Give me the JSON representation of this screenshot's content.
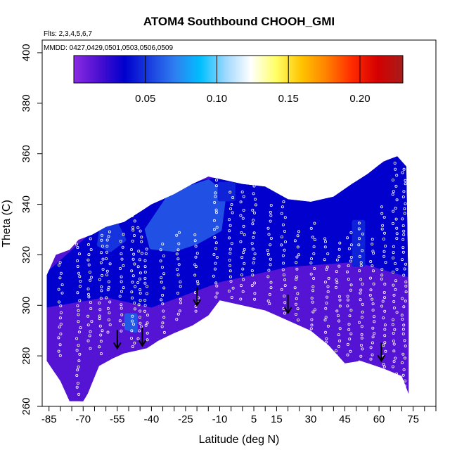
{
  "chart_data": {
    "type": "heatmap",
    "title": "ATOM4 Southbound CHOOH_GMI",
    "xlabel": "Latitude (deg N)",
    "ylabel": "Theta (C)",
    "notes": {
      "flights": "Flts: 2,3,4,5,6,7",
      "dates": "MMDD: 0427,0429,0501,0503,0506,0509"
    },
    "xlim": [
      -88,
      85
    ],
    "ylim": [
      260,
      405
    ],
    "x_ticks": [
      -85,
      -70,
      -55,
      -40,
      -25,
      -10,
      5,
      15,
      30,
      45,
      60,
      75
    ],
    "x_minor_ticks": [
      -80,
      -75,
      -65,
      -60,
      -50,
      -45,
      -35,
      -30,
      -20,
      -15,
      -5,
      0,
      10,
      20,
      25,
      35,
      40,
      50,
      55,
      65,
      70,
      80,
      85
    ],
    "y_ticks": [
      260,
      280,
      300,
      320,
      340,
      360,
      380,
      400
    ],
    "colorbar": {
      "min": 0.0,
      "max": 0.23,
      "ticks": [
        0.05,
        0.1,
        0.15,
        0.2
      ],
      "tick_labels": [
        "0.05",
        "0.10",
        "0.15",
        "0.20"
      ],
      "colors": [
        "#8a2be2",
        "#4b0fd0",
        "#0000cd",
        "#1a3fe0",
        "#2f7ff0",
        "#00bfff",
        "#9fd8ff",
        "#ffffff",
        "#ffff66",
        "#ffc400",
        "#ff7f00",
        "#ff2a00",
        "#d40000",
        "#a81c1c"
      ]
    },
    "envelope": {
      "top": [
        [
          -86,
          312
        ],
        [
          -82,
          320
        ],
        [
          -76,
          322
        ],
        [
          -72,
          326
        ],
        [
          -66,
          328
        ],
        [
          -60,
          331
        ],
        [
          -52,
          333
        ],
        [
          -45,
          337
        ],
        [
          -40,
          340
        ],
        [
          -30,
          344
        ],
        [
          -22,
          348
        ],
        [
          -15,
          351
        ],
        [
          -10,
          350
        ],
        [
          0,
          348
        ],
        [
          10,
          347
        ],
        [
          20,
          342
        ],
        [
          30,
          341
        ],
        [
          40,
          343
        ],
        [
          48,
          348
        ],
        [
          55,
          352
        ],
        [
          62,
          357
        ],
        [
          68,
          359
        ],
        [
          72,
          355
        ],
        [
          73,
          300
        ]
      ],
      "bottom": [
        [
          73,
          265
        ],
        [
          70,
          272
        ],
        [
          62,
          275
        ],
        [
          52,
          278
        ],
        [
          45,
          277
        ],
        [
          38,
          284
        ],
        [
          30,
          290
        ],
        [
          20,
          294
        ],
        [
          10,
          298
        ],
        [
          0,
          300
        ],
        [
          -10,
          302
        ],
        [
          -15,
          296
        ],
        [
          -22,
          292
        ],
        [
          -30,
          289
        ],
        [
          -37,
          286
        ],
        [
          -42,
          283
        ],
        [
          -47,
          282
        ],
        [
          -52,
          281
        ],
        [
          -57,
          279
        ],
        [
          -63,
          276
        ],
        [
          -68,
          265
        ],
        [
          -70,
          262
        ],
        [
          -76,
          262
        ],
        [
          -80,
          270
        ],
        [
          -86,
          278
        ]
      ]
    },
    "regions": [
      {
        "level": 0.015,
        "points": [
          [
            -86,
            300
          ],
          [
            -60,
            304
          ],
          [
            -40,
            300
          ],
          [
            -10,
            310
          ],
          [
            20,
            316
          ],
          [
            50,
            318
          ],
          [
            73,
            312
          ],
          [
            73,
            265
          ],
          [
            52,
            278
          ],
          [
            30,
            290
          ],
          [
            0,
            300
          ],
          [
            -15,
            296
          ],
          [
            -37,
            286
          ],
          [
            -57,
            279
          ],
          [
            -70,
            262
          ],
          [
            -86,
            278
          ]
        ]
      },
      {
        "level": 0.035,
        "points": [
          [
            -86,
            312
          ],
          [
            -66,
            328
          ],
          [
            -45,
            337
          ],
          [
            -22,
            348
          ],
          [
            -10,
            350
          ],
          [
            0,
            348
          ],
          [
            10,
            347
          ],
          [
            20,
            342
          ],
          [
            30,
            341
          ],
          [
            40,
            343
          ],
          [
            55,
            352
          ],
          [
            68,
            359
          ],
          [
            72,
            355
          ],
          [
            73,
            312
          ],
          [
            50,
            318
          ],
          [
            20,
            316
          ],
          [
            -10,
            310
          ],
          [
            -40,
            300
          ],
          [
            -60,
            304
          ],
          [
            -86,
            300
          ]
        ]
      },
      {
        "level": 0.058,
        "points": [
          [
            -33,
            342
          ],
          [
            -25,
            346
          ],
          [
            -15,
            349
          ],
          [
            -8,
            344
          ],
          [
            -10,
            330
          ],
          [
            -20,
            325
          ],
          [
            -30,
            322
          ],
          [
            -40,
            323
          ],
          [
            -42,
            330
          ]
        ]
      },
      {
        "level": 0.05,
        "points": [
          [
            -62,
            330
          ],
          [
            -56,
            333
          ],
          [
            -52,
            326
          ],
          [
            -58,
            322
          ],
          [
            -63,
            324
          ]
        ]
      },
      {
        "level": 0.06,
        "points": [
          [
            -51,
            296
          ],
          [
            -47,
            296
          ],
          [
            -47,
            290
          ],
          [
            -51,
            291
          ]
        ]
      },
      {
        "level": 0.045,
        "points": [
          [
            49,
            333
          ],
          [
            53,
            333
          ],
          [
            53,
            316
          ],
          [
            49,
            316
          ]
        ]
      },
      {
        "level": 0.045,
        "points": [
          [
            -10,
            348
          ],
          [
            -4,
            348
          ],
          [
            -4,
            342
          ],
          [
            -10,
            342
          ]
        ]
      }
    ],
    "observations": [
      {
        "lat": -80,
        "theta_min": 280,
        "theta_max": 318
      },
      {
        "lat": -72,
        "theta_min": 265,
        "theta_max": 326
      },
      {
        "lat": -67,
        "theta_min": 283,
        "theta_max": 330
      },
      {
        "lat": -62,
        "theta_min": 281,
        "theta_max": 328
      },
      {
        "lat": -59,
        "theta_min": 290,
        "theta_max": 330
      },
      {
        "lat": -53,
        "theta_min": 290,
        "theta_max": 328
      },
      {
        "lat": -48,
        "theta_min": 283,
        "theta_max": 336
      },
      {
        "lat": -45,
        "theta_min": 287,
        "theta_max": 332
      },
      {
        "lat": -42,
        "theta_min": 287,
        "theta_max": 324
      },
      {
        "lat": -35,
        "theta_min": 289,
        "theta_max": 326
      },
      {
        "lat": -28,
        "theta_min": 294,
        "theta_max": 331
      },
      {
        "lat": -20,
        "theta_min": 297,
        "theta_max": 328
      },
      {
        "lat": -12,
        "theta_min": 303,
        "theta_max": 350
      },
      {
        "lat": -5,
        "theta_min": 303,
        "theta_max": 345
      },
      {
        "lat": 0,
        "theta_min": 303,
        "theta_max": 346
      },
      {
        "lat": 5,
        "theta_min": 303,
        "theta_max": 347
      },
      {
        "lat": 12,
        "theta_min": 300,
        "theta_max": 340
      },
      {
        "lat": 18,
        "theta_min": 297,
        "theta_max": 341
      },
      {
        "lat": 24,
        "theta_min": 292,
        "theta_max": 330
      },
      {
        "lat": 31,
        "theta_min": 288,
        "theta_max": 332
      },
      {
        "lat": 37,
        "theta_min": 285,
        "theta_max": 327
      },
      {
        "lat": 42,
        "theta_min": 280,
        "theta_max": 325
      },
      {
        "lat": 47,
        "theta_min": 280,
        "theta_max": 330
      },
      {
        "lat": 52,
        "theta_min": 278,
        "theta_max": 333
      },
      {
        "lat": 57,
        "theta_min": 276,
        "theta_max": 327
      },
      {
        "lat": 62,
        "theta_min": 275,
        "theta_max": 340
      },
      {
        "lat": 67,
        "theta_min": 273,
        "theta_max": 358
      },
      {
        "lat": 71,
        "theta_min": 266,
        "theta_max": 355
      }
    ],
    "arrows": [
      {
        "lat": -55,
        "theta": 283
      },
      {
        "lat": -44,
        "theta": 284
      },
      {
        "lat": -20,
        "theta": 300
      },
      {
        "lat": 20,
        "theta": 297
      },
      {
        "lat": 61,
        "theta": 278
      }
    ]
  }
}
